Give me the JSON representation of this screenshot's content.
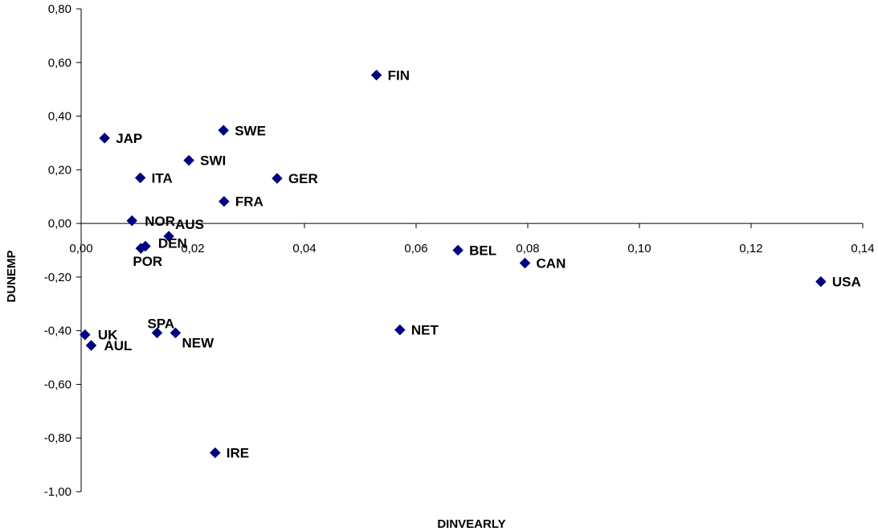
{
  "chart_data": {
    "type": "scatter",
    "xlabel": "DINVEARLY",
    "ylabel": "DUNEMP",
    "xlim": [
      0,
      0.14
    ],
    "ylim": [
      -1.0,
      0.8
    ],
    "xticks": [
      0.0,
      0.02,
      0.04,
      0.06,
      0.08,
      0.1,
      0.12,
      0.14
    ],
    "yticks": [
      -1.0,
      -0.8,
      -0.6,
      -0.4,
      -0.2,
      0.0,
      0.2,
      0.4,
      0.6,
      0.8
    ],
    "xtick_labels": [
      "0,00",
      "0,02",
      "0,04",
      "0,06",
      "0,08",
      "0,10",
      "0,12",
      "0,14"
    ],
    "ytick_labels": [
      "-1,00",
      "-0,80",
      "-0,60",
      "-0,40",
      "-0,20",
      "0,00",
      "0,20",
      "0,40",
      "0,60",
      "0,80"
    ],
    "grid": false,
    "marker_color": "#000080",
    "points": [
      {
        "label": "FIN",
        "x": 0.0529,
        "y": 0.553
      },
      {
        "label": "SWE",
        "x": 0.0255,
        "y": 0.347
      },
      {
        "label": "JAP",
        "x": 0.0042,
        "y": 0.318
      },
      {
        "label": "SWI",
        "x": 0.0193,
        "y": 0.235
      },
      {
        "label": "ITA",
        "x": 0.0106,
        "y": 0.17
      },
      {
        "label": "GER",
        "x": 0.0351,
        "y": 0.168
      },
      {
        "label": "FRA",
        "x": 0.0256,
        "y": 0.082
      },
      {
        "label": "NOR",
        "x": 0.0091,
        "y": 0.01
      },
      {
        "label": "AUS",
        "x": 0.0157,
        "y": -0.048
      },
      {
        "label": "DEN",
        "x": 0.0115,
        "y": -0.085
      },
      {
        "label": "POR",
        "x": 0.0107,
        "y": -0.093
      },
      {
        "label": "BEL",
        "x": 0.0675,
        "y": -0.1
      },
      {
        "label": "CAN",
        "x": 0.0795,
        "y": -0.148
      },
      {
        "label": "USA",
        "x": 0.1325,
        "y": -0.217
      },
      {
        "label": "NET",
        "x": 0.0571,
        "y": -0.397
      },
      {
        "label": "SPA",
        "x": 0.0136,
        "y": -0.408
      },
      {
        "label": "NEW",
        "x": 0.0169,
        "y": -0.408
      },
      {
        "label": "UK",
        "x": 0.0007,
        "y": -0.415
      },
      {
        "label": "AUL",
        "x": 0.0018,
        "y": -0.455
      },
      {
        "label": "IRE",
        "x": 0.024,
        "y": -0.855
      }
    ]
  }
}
